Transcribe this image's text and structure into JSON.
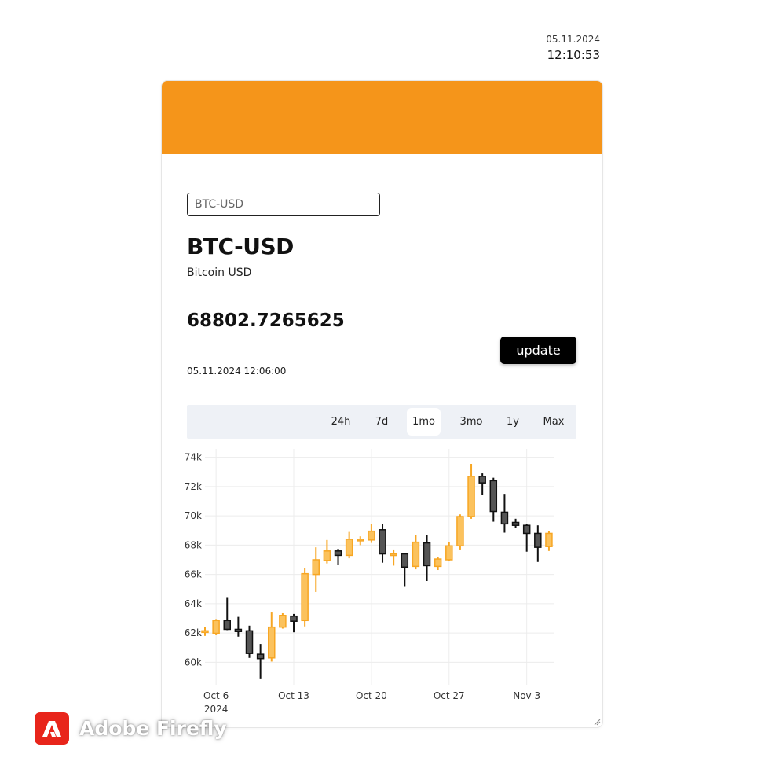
{
  "clock": {
    "date": "05.11.2024",
    "time": "12:10:53"
  },
  "header": {
    "color": "#f5951a"
  },
  "search": {
    "value": "BTC-USD",
    "placeholder": "BTC-USD"
  },
  "quote": {
    "symbol": "BTC-USD",
    "name": "Bitcoin USD",
    "price": "68802.7265625",
    "timestamp": "05.11.2024 12:06:00",
    "update_label": "update"
  },
  "ranges": {
    "items": [
      "24h",
      "7d",
      "1mo",
      "3mo",
      "1y",
      "Max"
    ],
    "selected": "1mo"
  },
  "chart_data": {
    "type": "candlestick",
    "colors": {
      "up": "#f7a623",
      "down": "#555555"
    },
    "y_ticks": [
      "60k",
      "62k",
      "64k",
      "66k",
      "68k",
      "70k",
      "72k",
      "74k"
    ],
    "ylim": [
      59000,
      74300
    ],
    "x_ticks": [
      {
        "day": 6,
        "label": "Oct 6",
        "sub": "2024"
      },
      {
        "day": 13,
        "label": "Oct 13",
        "sub": ""
      },
      {
        "day": 20,
        "label": "Oct 20",
        "sub": ""
      },
      {
        "day": 27,
        "label": "Oct 27",
        "sub": ""
      },
      {
        "day": 34,
        "label": "Nov 3",
        "sub": ""
      }
    ],
    "grid": true,
    "candles": [
      {
        "date": "Oct 5",
        "open": 62080,
        "high": 62400,
        "low": 61800,
        "close": 62150
      },
      {
        "date": "Oct 6",
        "open": 61980,
        "high": 62950,
        "low": 61850,
        "close": 62850
      },
      {
        "date": "Oct 7",
        "open": 62850,
        "high": 64450,
        "low": 62200,
        "close": 62250
      },
      {
        "date": "Oct 8",
        "open": 62250,
        "high": 63100,
        "low": 61750,
        "close": 62100
      },
      {
        "date": "Oct 9",
        "open": 62150,
        "high": 62500,
        "low": 60300,
        "close": 60600
      },
      {
        "date": "Oct 10",
        "open": 60550,
        "high": 61250,
        "low": 58900,
        "close": 60250
      },
      {
        "date": "Oct 11",
        "open": 60300,
        "high": 63400,
        "low": 60050,
        "close": 62400
      },
      {
        "date": "Oct 12",
        "open": 62400,
        "high": 63350,
        "low": 62300,
        "close": 63200
      },
      {
        "date": "Oct 13",
        "open": 63150,
        "high": 63300,
        "low": 62050,
        "close": 62800
      },
      {
        "date": "Oct 14",
        "open": 62850,
        "high": 66450,
        "low": 62450,
        "close": 66050
      },
      {
        "date": "Oct 15",
        "open": 66000,
        "high": 67850,
        "low": 64800,
        "close": 67000
      },
      {
        "date": "Oct 16",
        "open": 66950,
        "high": 68350,
        "low": 66750,
        "close": 67600
      },
      {
        "date": "Oct 17",
        "open": 67600,
        "high": 67750,
        "low": 66650,
        "close": 67300
      },
      {
        "date": "Oct 18",
        "open": 67300,
        "high": 68900,
        "low": 67100,
        "close": 68400
      },
      {
        "date": "Oct 19",
        "open": 68350,
        "high": 68600,
        "low": 68000,
        "close": 68400
      },
      {
        "date": "Oct 20",
        "open": 68350,
        "high": 69450,
        "low": 68150,
        "close": 68950
      },
      {
        "date": "Oct 21",
        "open": 69050,
        "high": 69450,
        "low": 66800,
        "close": 67400
      },
      {
        "date": "Oct 22",
        "open": 67350,
        "high": 67700,
        "low": 66600,
        "close": 67400
      },
      {
        "date": "Oct 23",
        "open": 67400,
        "high": 67450,
        "low": 65200,
        "close": 66500
      },
      {
        "date": "Oct 24",
        "open": 66550,
        "high": 68700,
        "low": 66350,
        "close": 68200
      },
      {
        "date": "Oct 25",
        "open": 68150,
        "high": 68700,
        "low": 65550,
        "close": 66600
      },
      {
        "date": "Oct 26",
        "open": 66550,
        "high": 67200,
        "low": 66300,
        "close": 67050
      },
      {
        "date": "Oct 27",
        "open": 67000,
        "high": 68200,
        "low": 66900,
        "close": 67950
      },
      {
        "date": "Oct 28",
        "open": 67950,
        "high": 70100,
        "low": 67700,
        "close": 69950
      },
      {
        "date": "Oct 29",
        "open": 69950,
        "high": 73550,
        "low": 69800,
        "close": 72700
      },
      {
        "date": "Oct 30",
        "open": 72700,
        "high": 72900,
        "low": 71450,
        "close": 72250
      },
      {
        "date": "Oct 31",
        "open": 72400,
        "high": 72600,
        "low": 69600,
        "close": 70300
      },
      {
        "date": "Nov 1",
        "open": 70250,
        "high": 71500,
        "low": 68850,
        "close": 69450
      },
      {
        "date": "Nov 2",
        "open": 69550,
        "high": 69800,
        "low": 69200,
        "close": 69350
      },
      {
        "date": "Nov 3",
        "open": 69350,
        "high": 69450,
        "low": 67550,
        "close": 68800
      },
      {
        "date": "Nov 4",
        "open": 68800,
        "high": 69350,
        "low": 66850,
        "close": 67850
      },
      {
        "date": "Nov 5",
        "open": 67900,
        "high": 68950,
        "low": 67600,
        "close": 68800
      }
    ]
  },
  "watermark": {
    "text": "Adobe Firefly"
  }
}
